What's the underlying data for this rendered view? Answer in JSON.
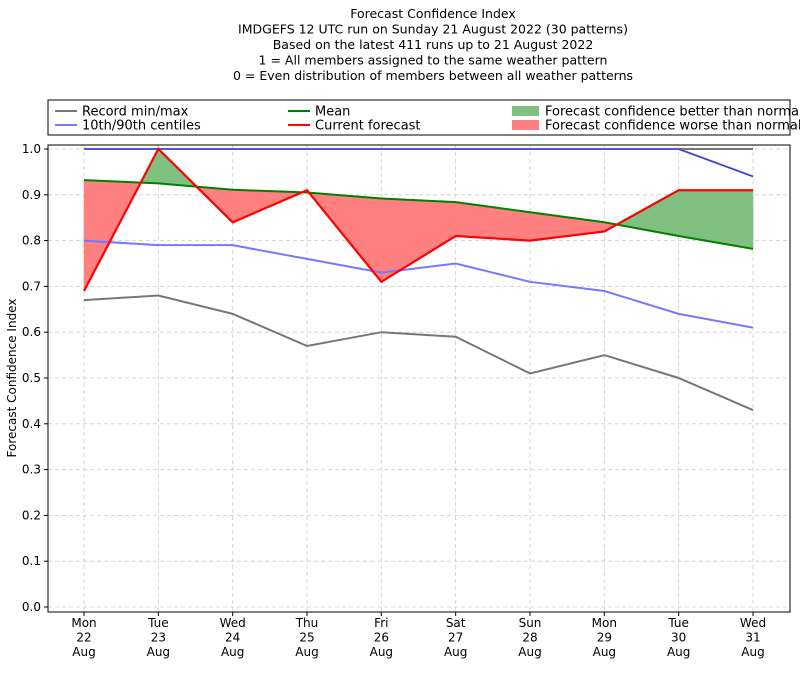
{
  "chart_data": {
    "type": "line",
    "title_lines": [
      "Forecast Confidence Index",
      "IMDGEFS 12 UTC run on Sunday 21 August 2022 (30 patterns)",
      "Based on the latest 411 runs up to 21 August 2022",
      "1 = All members assigned to the same weather pattern",
      "0 = Even distribution of members between all weather patterns"
    ],
    "ylabel": "Forecast Confidence Index",
    "xlabel": "",
    "ylim": [
      0,
      1
    ],
    "yticks": [
      "0.0",
      "0.1",
      "0.2",
      "0.3",
      "0.4",
      "0.5",
      "0.6",
      "0.7",
      "0.8",
      "0.9",
      "1.0"
    ],
    "categories": [
      [
        "Mon",
        "22",
        "Aug"
      ],
      [
        "Tue",
        "23",
        "Aug"
      ],
      [
        "Wed",
        "24",
        "Aug"
      ],
      [
        "Thu",
        "25",
        "Aug"
      ],
      [
        "Fri",
        "26",
        "Aug"
      ],
      [
        "Sat",
        "27",
        "Aug"
      ],
      [
        "Sun",
        "28",
        "Aug"
      ],
      [
        "Mon",
        "29",
        "Aug"
      ],
      [
        "Tue",
        "30",
        "Aug"
      ],
      [
        "Wed",
        "31",
        "Aug"
      ]
    ],
    "grid": true,
    "legend_placement": "top (above plot)",
    "legend": [
      {
        "label": "Record min/max",
        "color": "#777777",
        "kind": "line"
      },
      {
        "label": "Mean",
        "color": "#008000",
        "kind": "line"
      },
      {
        "label": "Forecast confidence better than normal",
        "color": "#80c080",
        "kind": "patch"
      },
      {
        "label": "10th/90th centiles",
        "color": "#7777ff",
        "kind": "line"
      },
      {
        "label": "Current forecast",
        "color": "#ff0000",
        "kind": "line"
      },
      {
        "label": "Forecast confidence worse than normal",
        "color": "#ff8080",
        "kind": "patch"
      }
    ],
    "series": {
      "record_min": [
        0.67,
        0.68,
        0.64,
        0.57,
        0.6,
        0.59,
        0.51,
        0.55,
        0.5,
        0.43
      ],
      "record_max": [
        1.0,
        1.0,
        1.0,
        1.0,
        1.0,
        1.0,
        1.0,
        1.0,
        1.0,
        1.0
      ],
      "centile_10": [
        0.8,
        0.79,
        0.79,
        0.76,
        0.73,
        0.75,
        0.71,
        0.69,
        0.64,
        0.61
      ],
      "centile_90": [
        1.0,
        1.0,
        1.0,
        1.0,
        1.0,
        1.0,
        1.0,
        1.0,
        1.0,
        0.94
      ],
      "mean": [
        0.932,
        0.925,
        0.911,
        0.905,
        0.892,
        0.884,
        0.862,
        0.84,
        0.81,
        0.782
      ],
      "current": [
        0.69,
        1.0,
        0.84,
        0.91,
        0.71,
        0.81,
        0.8,
        0.82,
        0.91,
        0.91
      ]
    },
    "colors": {
      "record": "#777777",
      "centile": "#7777ff",
      "max_centile": "#3333bb",
      "mean": "#008000",
      "current": "#ff0000",
      "better": "#80c080",
      "worse": "#ff8080"
    }
  }
}
